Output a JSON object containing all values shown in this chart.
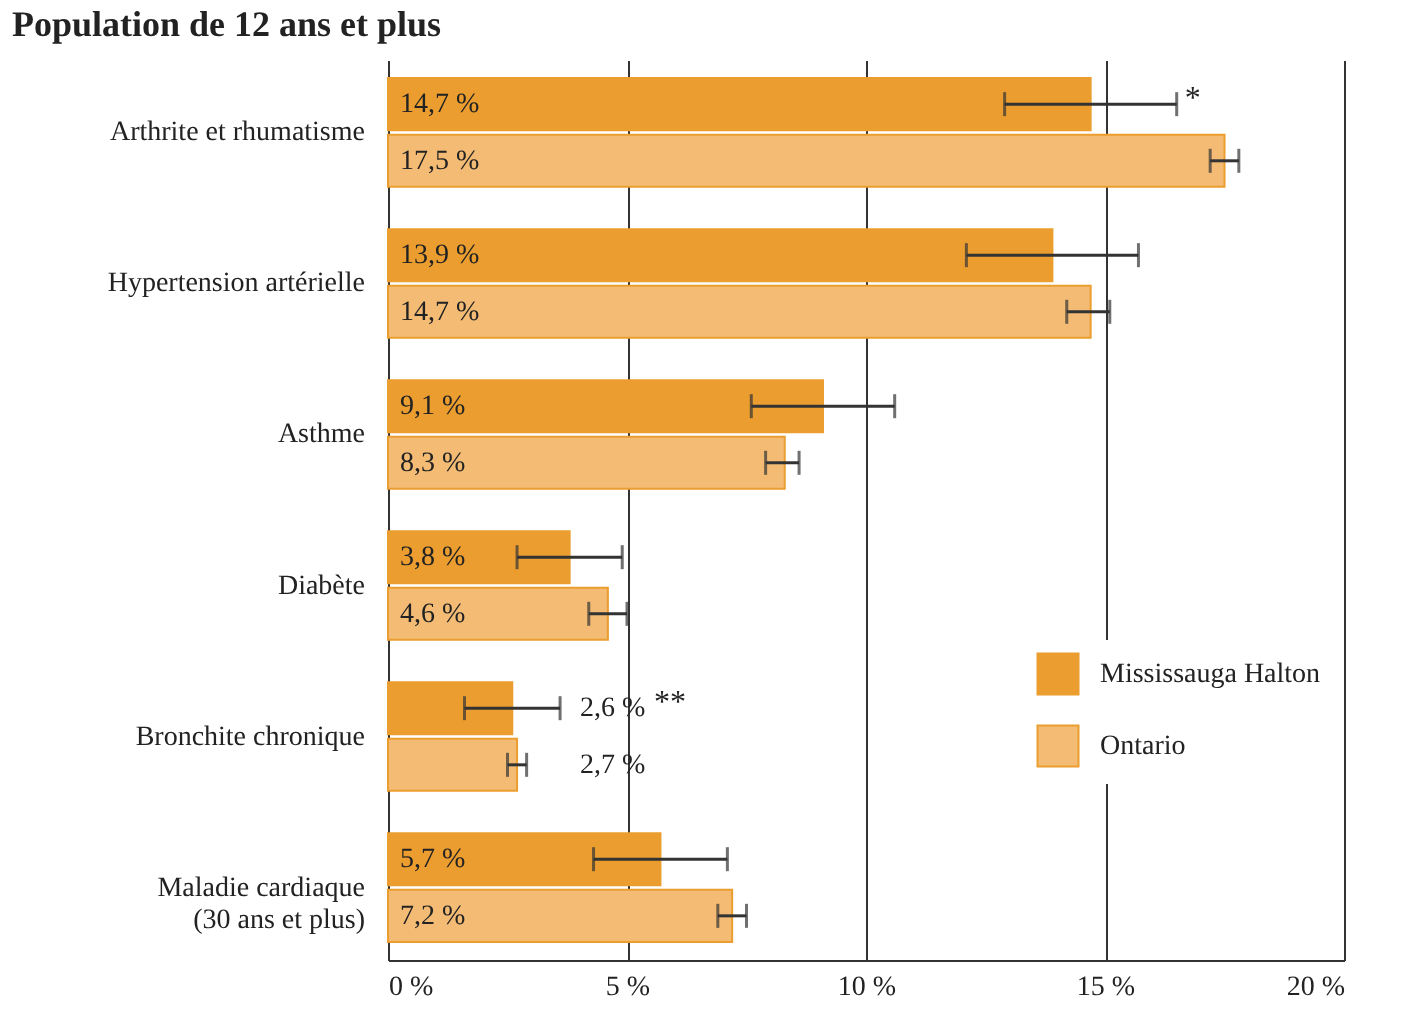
{
  "chart_data": {
    "type": "bar",
    "orientation": "horizontal",
    "title": "Population de 12 ans et plus",
    "categories": [
      "Arthrite et rhumatisme",
      "Hypertension artérielle",
      "Asthme",
      "Diabète",
      "Bronchite chronique",
      "Maladie cardiaque\n(30 ans et plus)"
    ],
    "series": [
      {
        "name": "Mississauga Halton",
        "color": "#eb9e2f",
        "values": [
          14.7,
          13.9,
          9.1,
          3.8,
          2.6,
          5.7
        ],
        "value_labels": [
          "14,7 %",
          "13,9 %",
          "9,1 %",
          "3,8 %",
          "2,6 %",
          "5,7 %"
        ],
        "errors": [
          [
            12.9,
            16.5
          ],
          [
            12.1,
            15.7
          ],
          [
            7.6,
            10.6
          ],
          [
            2.7,
            4.9
          ],
          [
            1.6,
            3.6
          ],
          [
            4.3,
            7.1
          ]
        ]
      },
      {
        "name": "Ontario",
        "color": "#f3bb74",
        "values": [
          17.5,
          14.7,
          8.3,
          4.6,
          2.7,
          7.2
        ],
        "value_labels": [
          "17,5 %",
          "14,7 %",
          "8,3 %",
          "4,6 %",
          "2,7 %",
          "7,2 %"
        ],
        "errors": [
          [
            17.2,
            17.8
          ],
          [
            14.2,
            15.1
          ],
          [
            7.9,
            8.6
          ],
          [
            4.2,
            5.0
          ],
          [
            2.5,
            2.9
          ],
          [
            6.9,
            7.5
          ]
        ]
      }
    ],
    "xlim": [
      0,
      20
    ],
    "xticks": [
      {
        "value": 0,
        "label": "0 %"
      },
      {
        "value": 5,
        "label": "5 %"
      },
      {
        "value": 10,
        "label": "10 %"
      },
      {
        "value": 15,
        "label": "15 %"
      },
      {
        "value": 20,
        "label": "20 %"
      }
    ],
    "grid": "x",
    "legend": "right",
    "annotations": [
      {
        "text": "*",
        "x": 16.5,
        "y": "Arthrite et rhumatisme"
      },
      "**"
    ]
  }
}
